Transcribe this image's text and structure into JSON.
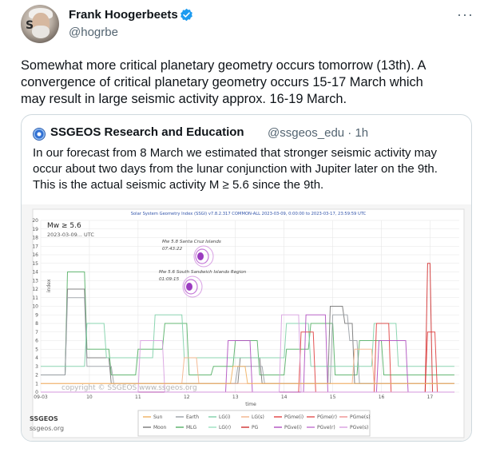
{
  "author": {
    "name": "Frank Hoogerbeets",
    "handle": "@hogrbe",
    "avatar_text": "S",
    "verified_icon": "verified-badge-icon"
  },
  "tweet": {
    "lines": [
      "Somewhat more critical planetary geometry occurs tomorrow (13th). A",
      "convergence of critical planetary geometry occurs 15-17 March which",
      "may result in large seismic activity approx. 16-19 March."
    ]
  },
  "quote": {
    "name": "SSGEOS Research and Education",
    "handle": "@ssgeos_edu · 1h",
    "lines": [
      "In our forecast from 8 March we estimated that stronger seismic activity may",
      "occur about two days from the lunar conjunction with Jupiter later on the 9th.",
      "This is the actual seismic activity M ≥ 5.6 since the 9th."
    ]
  },
  "chart_data": {
    "type": "line",
    "title": "Solar System Geometry Index (SSGI) v7.8.2.317 COMMON-ALL 2023-03-09, 0:00:00 to 2023-03-17, 23:59:59 UTC",
    "xlabel": "time",
    "ylabel": "index",
    "ylim": [
      0,
      20
    ],
    "x_ticks": [
      "09-03",
      "10",
      "11",
      "12",
      "13",
      "14",
      "15",
      "16",
      "17"
    ],
    "y_ticks": [
      "0",
      "1",
      "2",
      "3",
      "4",
      "5",
      "6",
      "7",
      "8",
      "9",
      "10",
      "11",
      "12",
      "13",
      "14",
      "15",
      "16",
      "17",
      "18",
      "19",
      "20"
    ],
    "grid": true,
    "legend_placement": "bottom",
    "mw_label": "Mw ≥ 5.6",
    "date_label": "2023-03-09... UTC",
    "annotations": [
      {
        "title": "Mw 5.8 Santa Cruz Islands",
        "time": "07:43:22",
        "day": 12.0
      },
      {
        "title": "Mw 5.6 South Sandwich Islands Region",
        "time": "01:09:15",
        "day": 12.0
      }
    ],
    "watermark": "copyright © SSGEOS www.ssgeos.org",
    "brand": "SSGEOS",
    "brand_url": "ssgeos.org",
    "legend": [
      {
        "name": "Sun",
        "color": "#f0b060"
      },
      {
        "name": "Earth",
        "color": "#9aa0a6"
      },
      {
        "name": "LG(i)",
        "color": "#7fd0a8"
      },
      {
        "name": "LG(s)",
        "color": "#f3b38a"
      },
      {
        "name": "PGme(i)",
        "color": "#e04040"
      },
      {
        "name": "PGme(r)",
        "color": "#e05050"
      },
      {
        "name": "PGme(s)",
        "color": "#f09090"
      },
      {
        "name": "Moon",
        "color": "#777777"
      },
      {
        "name": "MLG",
        "color": "#55b066"
      },
      {
        "name": "LG(r)",
        "color": "#9be0c0"
      },
      {
        "name": "PG",
        "color": "#d03030"
      },
      {
        "name": "PGve(i)",
        "color": "#b050c0"
      },
      {
        "name": "PGve(r)",
        "color": "#c070d0"
      },
      {
        "name": "PGve(s)",
        "color": "#d8a0e0"
      }
    ],
    "series": [
      {
        "name": "MLG",
        "color": "#55b066",
        "values": [
          [
            9.0,
            2
          ],
          [
            9.5,
            2
          ],
          [
            9.55,
            14
          ],
          [
            9.9,
            14
          ],
          [
            9.95,
            5
          ],
          [
            10.4,
            5
          ],
          [
            10.45,
            2
          ],
          [
            10.95,
            2
          ],
          [
            11,
            5
          ],
          [
            11.5,
            5
          ],
          [
            11.55,
            8
          ],
          [
            12,
            8
          ],
          [
            12.05,
            2
          ],
          [
            12.5,
            2
          ],
          [
            12.55,
            3
          ],
          [
            12.95,
            3
          ],
          [
            13,
            6
          ],
          [
            13.45,
            6
          ],
          [
            13.5,
            2
          ],
          [
            14,
            2
          ],
          [
            14.05,
            5
          ],
          [
            14.5,
            5
          ],
          [
            14.55,
            8
          ],
          [
            15,
            8
          ],
          [
            15.05,
            2
          ],
          [
            15.5,
            2
          ],
          [
            15.55,
            6
          ],
          [
            16,
            6
          ],
          [
            16.05,
            2
          ],
          [
            17.5,
            2
          ]
        ]
      },
      {
        "name": "Moon",
        "color": "#777777",
        "values": [
          [
            9.0,
            2
          ],
          [
            9.5,
            2
          ],
          [
            9.55,
            12
          ],
          [
            9.9,
            12
          ],
          [
            9.95,
            4
          ],
          [
            10.4,
            4
          ],
          [
            10.45,
            1
          ],
          [
            13.05,
            1
          ],
          [
            13.1,
            4
          ],
          [
            13.5,
            4
          ],
          [
            13.55,
            1
          ],
          [
            14.9,
            1
          ],
          [
            14.95,
            10
          ],
          [
            15.2,
            10
          ],
          [
            15.25,
            8
          ],
          [
            15.4,
            8
          ],
          [
            15.45,
            1
          ],
          [
            17.5,
            1
          ]
        ]
      },
      {
        "name": "Earth",
        "color": "#9aa0a6",
        "values": [
          [
            9.0,
            2
          ],
          [
            9.5,
            2
          ],
          [
            9.55,
            11
          ],
          [
            9.9,
            11
          ],
          [
            9.95,
            3
          ],
          [
            10.45,
            3
          ],
          [
            10.5,
            1
          ],
          [
            13.0,
            1
          ],
          [
            13.05,
            3
          ],
          [
            13.55,
            3
          ],
          [
            13.6,
            1
          ],
          [
            14.95,
            1
          ],
          [
            15.0,
            9
          ],
          [
            15.3,
            9
          ],
          [
            15.35,
            6
          ],
          [
            15.5,
            6
          ],
          [
            15.55,
            1
          ],
          [
            17.5,
            1
          ]
        ]
      },
      {
        "name": "LG(i)",
        "color": "#7fd0a8",
        "values": [
          [
            9.0,
            3
          ],
          [
            9.9,
            3
          ],
          [
            9.95,
            8
          ],
          [
            10.3,
            8
          ],
          [
            10.35,
            4
          ],
          [
            11.3,
            4
          ],
          [
            11.35,
            9
          ],
          [
            11.9,
            9
          ],
          [
            11.95,
            4
          ],
          [
            14.0,
            4
          ],
          [
            14.05,
            8
          ],
          [
            14.5,
            8
          ],
          [
            14.55,
            3
          ],
          [
            15.8,
            3
          ],
          [
            15.85,
            8
          ],
          [
            16.3,
            8
          ],
          [
            16.35,
            3
          ],
          [
            17.5,
            3
          ]
        ]
      },
      {
        "name": "PGme(i)",
        "color": "#e04040",
        "values": [
          [
            9.0,
            0
          ],
          [
            14.3,
            0
          ],
          [
            14.35,
            7
          ],
          [
            14.6,
            7
          ],
          [
            14.65,
            0
          ],
          [
            15.85,
            0
          ],
          [
            15.9,
            8
          ],
          [
            16.15,
            8
          ],
          [
            16.2,
            0
          ],
          [
            16.9,
            0
          ],
          [
            16.95,
            7
          ],
          [
            17.1,
            7
          ],
          [
            17.15,
            0
          ],
          [
            17.5,
            0
          ]
        ]
      },
      {
        "name": "PG",
        "color": "#d03030",
        "values": [
          [
            9.0,
            0
          ],
          [
            16.9,
            0
          ],
          [
            16.95,
            15
          ],
          [
            17.0,
            15
          ],
          [
            17.05,
            0
          ],
          [
            17.5,
            0
          ]
        ]
      },
      {
        "name": "PGve(i)",
        "color": "#b050c0",
        "values": [
          [
            9.0,
            0
          ],
          [
            12.8,
            0
          ],
          [
            12.85,
            6
          ],
          [
            13.3,
            6
          ],
          [
            13.35,
            0
          ],
          [
            14.4,
            0
          ],
          [
            14.45,
            9
          ],
          [
            14.85,
            9
          ],
          [
            14.9,
            0
          ],
          [
            15.9,
            0
          ],
          [
            15.95,
            6
          ],
          [
            16.5,
            6
          ],
          [
            16.55,
            0
          ],
          [
            17.5,
            0
          ]
        ]
      },
      {
        "name": "PGve(s)",
        "color": "#d8a0e0",
        "values": [
          [
            9.0,
            0
          ],
          [
            11.0,
            0
          ],
          [
            11.05,
            6
          ],
          [
            11.5,
            6
          ],
          [
            11.55,
            0
          ],
          [
            13.9,
            0
          ],
          [
            13.95,
            9
          ],
          [
            14.3,
            9
          ],
          [
            14.35,
            0
          ],
          [
            17.5,
            0
          ]
        ]
      },
      {
        "name": "LG(s)",
        "color": "#f3b38a",
        "values": [
          [
            9.0,
            1
          ],
          [
            11.9,
            1
          ],
          [
            11.95,
            4
          ],
          [
            12.2,
            4
          ],
          [
            12.25,
            1
          ],
          [
            15.4,
            1
          ],
          [
            15.45,
            5
          ],
          [
            15.8,
            5
          ],
          [
            15.85,
            1
          ],
          [
            17.5,
            1
          ]
        ]
      },
      {
        "name": "Sun",
        "color": "#f0b060",
        "values": [
          [
            9.0,
            1
          ],
          [
            12.9,
            1
          ],
          [
            12.95,
            3
          ],
          [
            13.2,
            3
          ],
          [
            13.25,
            1
          ],
          [
            17.5,
            1
          ]
        ]
      }
    ]
  }
}
